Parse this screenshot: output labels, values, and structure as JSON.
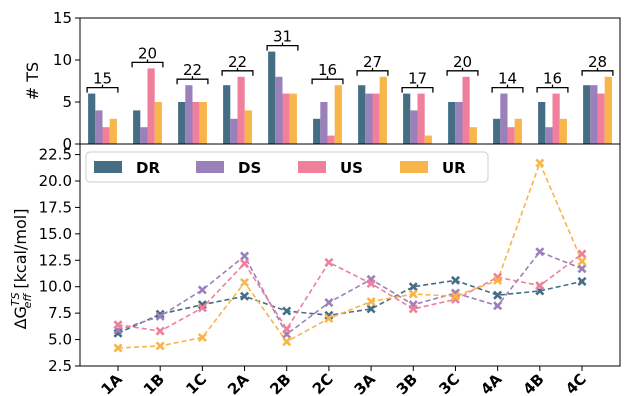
{
  "chart_data": [
    {
      "type": "bar",
      "ylabel": "# TS",
      "ylim": [
        0,
        15
      ],
      "yticks": [
        "0",
        "5",
        "10",
        "15"
      ],
      "categories": [
        "1A",
        "1B",
        "1C",
        "2A",
        "2B",
        "2C",
        "3A",
        "3B",
        "3C",
        "4A",
        "4B",
        "4C"
      ],
      "series": [
        {
          "name": "DR",
          "color": "#456e85",
          "values": [
            6,
            4,
            5,
            7,
            11,
            3,
            7,
            6,
            5,
            3,
            5,
            7
          ]
        },
        {
          "name": "DS",
          "color": "#9b81bb",
          "values": [
            4,
            2,
            7,
            3,
            8,
            5,
            6,
            4,
            5,
            6,
            2,
            7
          ]
        },
        {
          "name": "US",
          "color": "#ef7f9b",
          "values": [
            2,
            9,
            5,
            8,
            6,
            1,
            6,
            6,
            8,
            2,
            6,
            6
          ]
        },
        {
          "name": "UR",
          "color": "#f7b54a",
          "values": [
            3,
            5,
            5,
            4,
            6,
            7,
            8,
            1,
            2,
            3,
            3,
            8
          ]
        }
      ],
      "totals": [
        "15",
        "20",
        "22",
        "22",
        "31",
        "16",
        "27",
        "17",
        "20",
        "14",
        "16",
        "28"
      ]
    },
    {
      "type": "line",
      "ylabel_main": "ΔG",
      "ylabel_sup": "TS",
      "ylabel_sub": "eff",
      "ylabel_unit": " [kcal/mol]",
      "ylim": [
        2.5,
        23.5
      ],
      "yticks": [
        "2.5",
        "5.0",
        "7.5",
        "10.0",
        "12.5",
        "15.0",
        "17.5",
        "20.0",
        "22.5"
      ],
      "categories": [
        "1A",
        "1B",
        "1C",
        "2A",
        "2B",
        "2C",
        "3A",
        "3B",
        "3C",
        "4A",
        "4B",
        "4C"
      ],
      "legend_position": "top",
      "series": [
        {
          "name": "DR",
          "color": "#456e85",
          "values": [
            5.6,
            7.4,
            8.3,
            9.1,
            7.7,
            7.3,
            7.9,
            10.0,
            10.6,
            9.2,
            9.6,
            10.5
          ]
        },
        {
          "name": "DS",
          "color": "#9b81bb",
          "values": [
            5.9,
            7.2,
            9.7,
            12.9,
            5.5,
            8.5,
            10.7,
            8.3,
            9.4,
            8.2,
            13.3,
            11.7
          ]
        },
        {
          "name": "US",
          "color": "#ef7f9b",
          "values": [
            6.4,
            5.8,
            8.0,
            12.2,
            6.0,
            12.3,
            10.3,
            7.9,
            8.8,
            10.9,
            10.1,
            13.1
          ]
        },
        {
          "name": "UR",
          "color": "#f7b54a",
          "values": [
            4.2,
            4.4,
            5.2,
            10.4,
            4.8,
            7.0,
            8.6,
            9.3,
            9.1,
            10.6,
            21.7,
            12.4
          ]
        }
      ]
    }
  ]
}
